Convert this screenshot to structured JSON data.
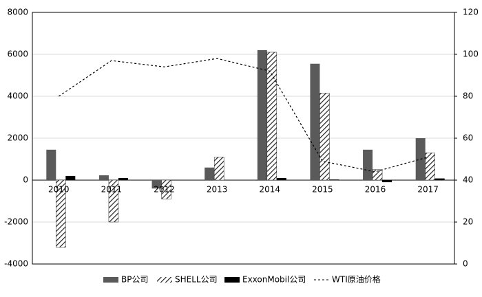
{
  "chart_data": {
    "type": "bar_line",
    "categories": [
      "2010",
      "2011",
      "2012",
      "2013",
      "2014",
      "2015",
      "2016",
      "2017"
    ],
    "series": [
      {
        "name": "BP公司",
        "type": "bar",
        "color": "#5a5a5a",
        "values": [
          1450,
          230,
          -400,
          600,
          6200,
          5550,
          1450,
          2000
        ]
      },
      {
        "name": "SHELL公司",
        "type": "bar",
        "color": "#222222",
        "pattern": "hatch",
        "values": [
          -3200,
          -2000,
          -900,
          1100,
          6100,
          4150,
          500,
          1300
        ]
      },
      {
        "name": "ExxonMobil公司",
        "type": "bar",
        "color": "#000000",
        "values": [
          200,
          100,
          0,
          0,
          100,
          30,
          -100,
          80
        ]
      },
      {
        "name": "WTI原油价格",
        "type": "line",
        "axis": "y2",
        "color": "#000000",
        "line_style": "dashed",
        "values": [
          80,
          97,
          94,
          98,
          92,
          49,
          44,
          51
        ]
      }
    ],
    "ylim": [
      -4000,
      8000
    ],
    "yticks": [
      -4000,
      -2000,
      0,
      2000,
      4000,
      6000,
      8000
    ],
    "y2lim": [
      0,
      120
    ],
    "y2ticks": [
      0,
      20,
      40,
      60,
      80,
      100,
      120
    ],
    "grid": true,
    "legend": "bottom"
  }
}
